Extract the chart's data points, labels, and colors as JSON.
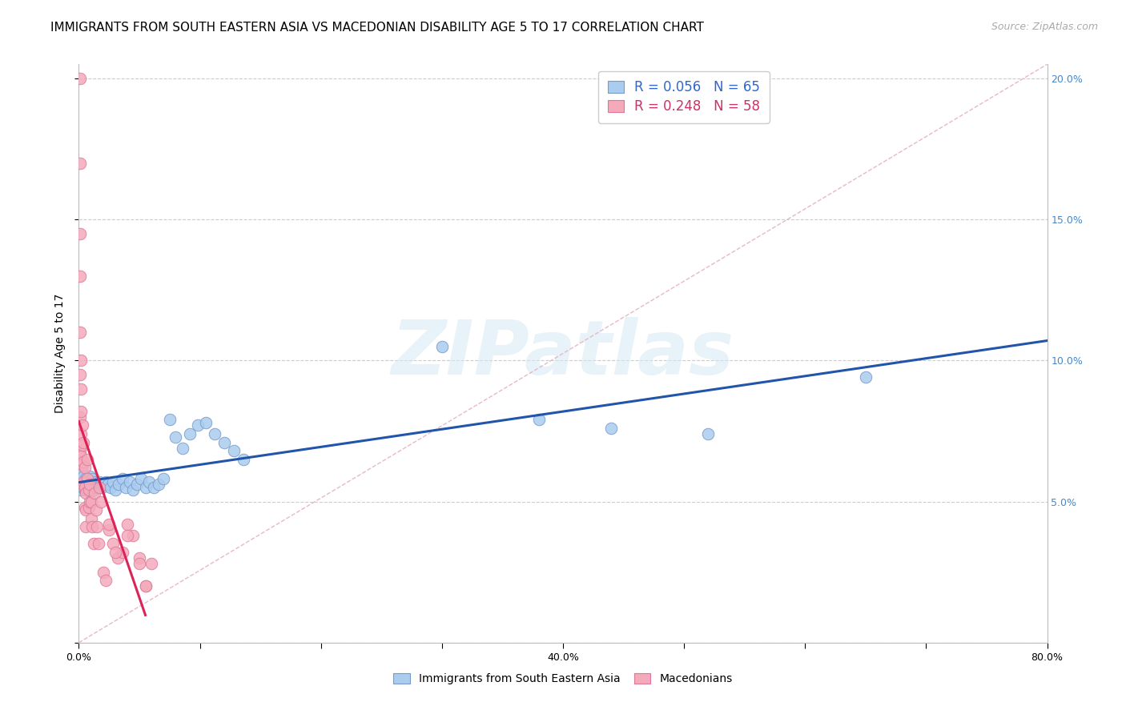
{
  "title": "IMMIGRANTS FROM SOUTH EASTERN ASIA VS MACEDONIAN DISABILITY AGE 5 TO 17 CORRELATION CHART",
  "source": "Source: ZipAtlas.com",
  "ylabel": "Disability Age 5 to 17",
  "xlim": [
    0.0,
    0.8
  ],
  "ylim": [
    0.0,
    0.205
  ],
  "series1_color": "#aaccee",
  "series1_edge": "#7799cc",
  "series2_color": "#f4aabb",
  "series2_edge": "#dd7799",
  "regression1_color": "#2255aa",
  "regression2_color": "#dd2255",
  "dashed_line_color": "#e8b8c8",
  "legend_color1": "#3366cc",
  "legend_color2": "#cc3366",
  "legend_R1": "R = 0.056",
  "legend_N1": "N = 65",
  "legend_R2": "R = 0.248",
  "legend_N2": "N = 58",
  "watermark_text": "ZIPatlas",
  "background_color": "#ffffff",
  "grid_color": "#cccccc",
  "title_fontsize": 11,
  "axis_label_fontsize": 10,
  "tick_fontsize": 9,
  "series1_x": [
    0.001,
    0.001,
    0.002,
    0.002,
    0.003,
    0.003,
    0.003,
    0.004,
    0.004,
    0.005,
    0.005,
    0.006,
    0.006,
    0.007,
    0.007,
    0.008,
    0.008,
    0.009,
    0.009,
    0.01,
    0.01,
    0.011,
    0.011,
    0.012,
    0.012,
    0.013,
    0.014,
    0.015,
    0.016,
    0.017,
    0.018,
    0.019,
    0.02,
    0.022,
    0.024,
    0.026,
    0.028,
    0.03,
    0.033,
    0.036,
    0.039,
    0.042,
    0.045,
    0.048,
    0.051,
    0.055,
    0.058,
    0.062,
    0.066,
    0.07,
    0.075,
    0.08,
    0.086,
    0.092,
    0.098,
    0.105,
    0.112,
    0.12,
    0.128,
    0.136,
    0.3,
    0.38,
    0.44,
    0.52,
    0.65
  ],
  "series1_y": [
    0.055,
    0.058,
    0.054,
    0.057,
    0.055,
    0.058,
    0.06,
    0.056,
    0.059,
    0.054,
    0.057,
    0.055,
    0.058,
    0.054,
    0.056,
    0.055,
    0.058,
    0.056,
    0.059,
    0.054,
    0.057,
    0.055,
    0.058,
    0.054,
    0.056,
    0.055,
    0.057,
    0.055,
    0.056,
    0.057,
    0.056,
    0.055,
    0.056,
    0.057,
    0.056,
    0.055,
    0.057,
    0.054,
    0.056,
    0.058,
    0.055,
    0.057,
    0.054,
    0.056,
    0.058,
    0.055,
    0.057,
    0.055,
    0.056,
    0.058,
    0.079,
    0.073,
    0.069,
    0.074,
    0.077,
    0.078,
    0.074,
    0.071,
    0.068,
    0.065,
    0.105,
    0.079,
    0.076,
    0.074,
    0.094
  ],
  "series2_x": [
    0.001,
    0.001,
    0.001,
    0.001,
    0.001,
    0.001,
    0.001,
    0.001,
    0.002,
    0.002,
    0.002,
    0.002,
    0.002,
    0.003,
    0.003,
    0.003,
    0.003,
    0.004,
    0.004,
    0.004,
    0.005,
    0.005,
    0.005,
    0.006,
    0.006,
    0.006,
    0.007,
    0.007,
    0.008,
    0.008,
    0.009,
    0.009,
    0.01,
    0.01,
    0.011,
    0.012,
    0.013,
    0.014,
    0.015,
    0.016,
    0.017,
    0.018,
    0.02,
    0.022,
    0.025,
    0.028,
    0.032,
    0.036,
    0.04,
    0.045,
    0.05,
    0.055,
    0.06,
    0.025,
    0.03,
    0.04,
    0.05,
    0.055
  ],
  "series2_y": [
    0.2,
    0.17,
    0.145,
    0.13,
    0.11,
    0.095,
    0.08,
    0.068,
    0.1,
    0.09,
    0.082,
    0.074,
    0.066,
    0.077,
    0.07,
    0.063,
    0.056,
    0.071,
    0.064,
    0.057,
    0.062,
    0.055,
    0.048,
    0.053,
    0.047,
    0.041,
    0.065,
    0.058,
    0.054,
    0.048,
    0.056,
    0.05,
    0.05,
    0.044,
    0.041,
    0.035,
    0.053,
    0.047,
    0.041,
    0.035,
    0.055,
    0.05,
    0.025,
    0.022,
    0.04,
    0.035,
    0.03,
    0.032,
    0.042,
    0.038,
    0.03,
    0.02,
    0.028,
    0.042,
    0.032,
    0.038,
    0.028,
    0.02
  ]
}
